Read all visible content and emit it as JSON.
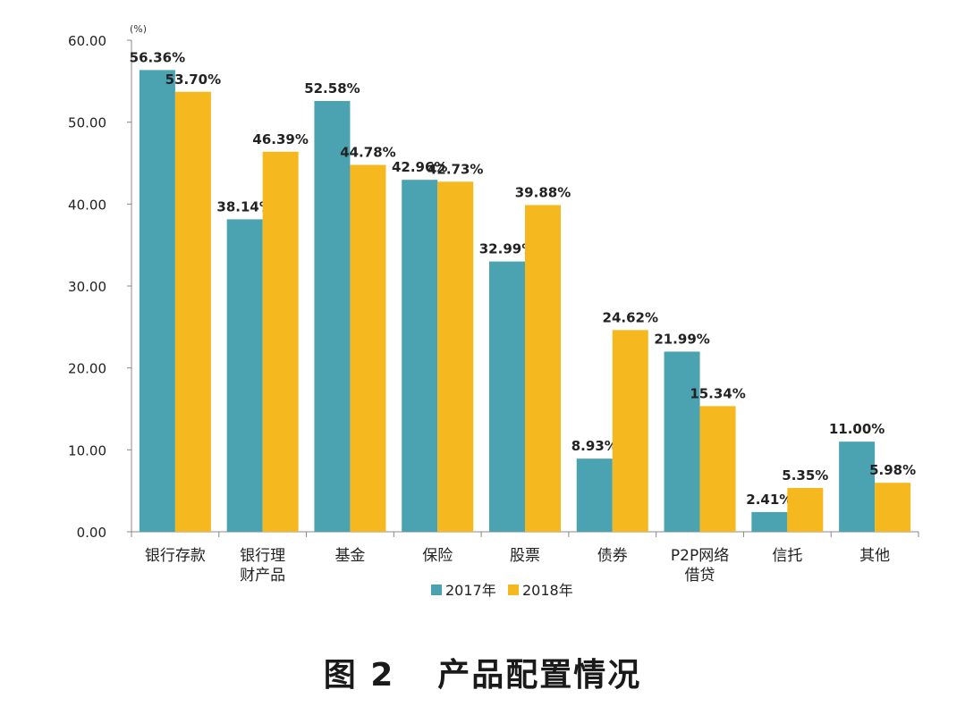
{
  "chart_data": {
    "type": "bar",
    "unit_label": "(%)",
    "categories": [
      [
        "银行存款"
      ],
      [
        "银行理",
        "财产品"
      ],
      [
        "基金"
      ],
      [
        "保险"
      ],
      [
        "股票"
      ],
      [
        "债券"
      ],
      [
        "P2P网络",
        "借贷"
      ],
      [
        "信托"
      ],
      [
        "其他"
      ]
    ],
    "series": [
      {
        "name": "2017年",
        "color": "#4ba3b2",
        "values": [
          56.36,
          38.14,
          52.58,
          42.96,
          32.99,
          8.93,
          21.99,
          2.41,
          11.0
        ],
        "labels": [
          "56.36%",
          "38.14%",
          "52.58%",
          "42.96%",
          "32.99%",
          "8.93%",
          "21.99%",
          "2.41%",
          "11.00%"
        ]
      },
      {
        "name": "2018年",
        "color": "#f6b81f",
        "values": [
          53.7,
          46.39,
          44.78,
          42.73,
          39.88,
          24.62,
          15.34,
          5.35,
          5.98
        ],
        "labels": [
          "53.70%",
          "46.39%",
          "44.78%",
          "42.73%",
          "39.88%",
          "24.62%",
          "15.34%",
          "5.35%",
          "5.98%"
        ]
      }
    ],
    "ylim": [
      0,
      60
    ],
    "yticks": [
      "0.00",
      "10.00",
      "20.00",
      "30.00",
      "40.00",
      "50.00",
      "60.00"
    ],
    "legend_position": "bottom",
    "grid": false
  },
  "caption": {
    "figure_no": "图 2",
    "title": "产品配置情况"
  }
}
